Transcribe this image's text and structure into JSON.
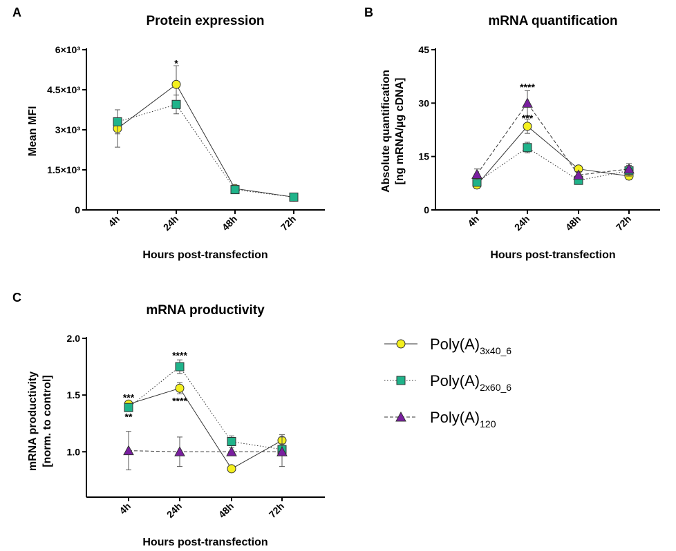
{
  "colors": {
    "poly3x40": "#f4f01e",
    "poly2x60": "#1fb38a",
    "poly120": "#7a1fa0",
    "axis": "#000000",
    "errorbar": "#555555"
  },
  "legend": {
    "items": [
      {
        "base": "Poly(A)",
        "sub": "3x40_6",
        "marker": "circle",
        "dash": "solid"
      },
      {
        "base": "Poly(A)",
        "sub": "2x60_6",
        "marker": "square",
        "dash": "dotted"
      },
      {
        "base": "Poly(A)",
        "sub": "120",
        "marker": "triangle",
        "dash": "dashed"
      }
    ]
  },
  "chart_data": [
    {
      "panel": "A",
      "type": "line",
      "title": "Protein expression",
      "xlabel": "Hours post-transfection",
      "ylabel": "Mean MFI",
      "categories": [
        "4h",
        "24h",
        "48h",
        "72h"
      ],
      "ylim": [
        0,
        6000
      ],
      "yticks": [
        0,
        1500,
        3000,
        4500,
        6000
      ],
      "ytick_labels": [
        "0",
        "1.5×10³",
        "3×10³",
        "4.5×10³",
        "6×10³"
      ],
      "series": [
        {
          "name": "Poly(A)3x40_6",
          "marker": "circle",
          "values": [
            3050,
            4700,
            800,
            480
          ],
          "errors": [
            700,
            700,
            50,
            40
          ]
        },
        {
          "name": "Poly(A)2x60_6",
          "marker": "square",
          "values": [
            3300,
            3950,
            760,
            480
          ],
          "errors": [
            450,
            350,
            50,
            40
          ]
        }
      ],
      "annotations": [
        {
          "text": "*",
          "category": "24h",
          "y": 5500
        }
      ]
    },
    {
      "panel": "B",
      "type": "line",
      "title": "mRNA quantification",
      "xlabel": "Hours post-transfection",
      "ylabel": "Absolute quantification",
      "ylabel2": "[ng mRNA/µg cDNA]",
      "categories": [
        "4h",
        "24h",
        "48h",
        "72h"
      ],
      "ylim": [
        0,
        45
      ],
      "yticks": [
        0,
        15,
        30,
        45
      ],
      "ytick_labels": [
        "0",
        "15",
        "30",
        "45"
      ],
      "series": [
        {
          "name": "Poly(A)3x40_6",
          "marker": "circle",
          "values": [
            7.0,
            23.5,
            11.5,
            9.5
          ],
          "errors": [
            1.0,
            2.0,
            1.0,
            1.0
          ]
        },
        {
          "name": "Poly(A)2x60_6",
          "marker": "square",
          "values": [
            7.8,
            17.5,
            8.3,
            11.0
          ],
          "errors": [
            1.0,
            1.5,
            1.0,
            1.5
          ]
        },
        {
          "name": "Poly(A)120",
          "marker": "triangle",
          "values": [
            10.0,
            30.0,
            9.8,
            11.5
          ],
          "errors": [
            1.5,
            3.5,
            1.0,
            1.5
          ]
        }
      ],
      "annotations": [
        {
          "text": "****",
          "category": "24h",
          "y": 34.5
        },
        {
          "text": "***",
          "category": "24h",
          "y": 25.8
        }
      ]
    },
    {
      "panel": "C",
      "type": "line",
      "title": "mRNA productivity",
      "xlabel": "Hours post-transfection",
      "ylabel": "mRNA productivity",
      "ylabel2": "[norm. to control]",
      "categories": [
        "4h",
        "24h",
        "48h",
        "72h"
      ],
      "ylim": [
        0.6,
        2.0
      ],
      "yticks": [
        1.0,
        1.5,
        2.0
      ],
      "ytick_labels": [
        "1.0",
        "1.5",
        "2.0"
      ],
      "series": [
        {
          "name": "Poly(A)3x40_6",
          "marker": "circle",
          "values": [
            1.42,
            1.56,
            0.85,
            1.1
          ],
          "errors": [
            0.03,
            0.05,
            0.01,
            0.05
          ]
        },
        {
          "name": "Poly(A)2x60_6",
          "marker": "square",
          "values": [
            1.39,
            1.75,
            1.09,
            1.02
          ],
          "errors": [
            0.03,
            0.06,
            0.05,
            0.05
          ]
        },
        {
          "name": "Poly(A)120",
          "marker": "triangle",
          "values": [
            1.01,
            1.0,
            1.0,
            1.0
          ],
          "errors": [
            0.17,
            0.13,
            0.0,
            0.13
          ]
        }
      ],
      "annotations": [
        {
          "text": "***",
          "category": "4h",
          "y": 1.48
        },
        {
          "text": "**",
          "category": "4h",
          "y": 1.31
        },
        {
          "text": "****",
          "category": "24h",
          "y": 1.85
        },
        {
          "text": "****",
          "category": "24h",
          "y": 1.45
        }
      ]
    }
  ]
}
